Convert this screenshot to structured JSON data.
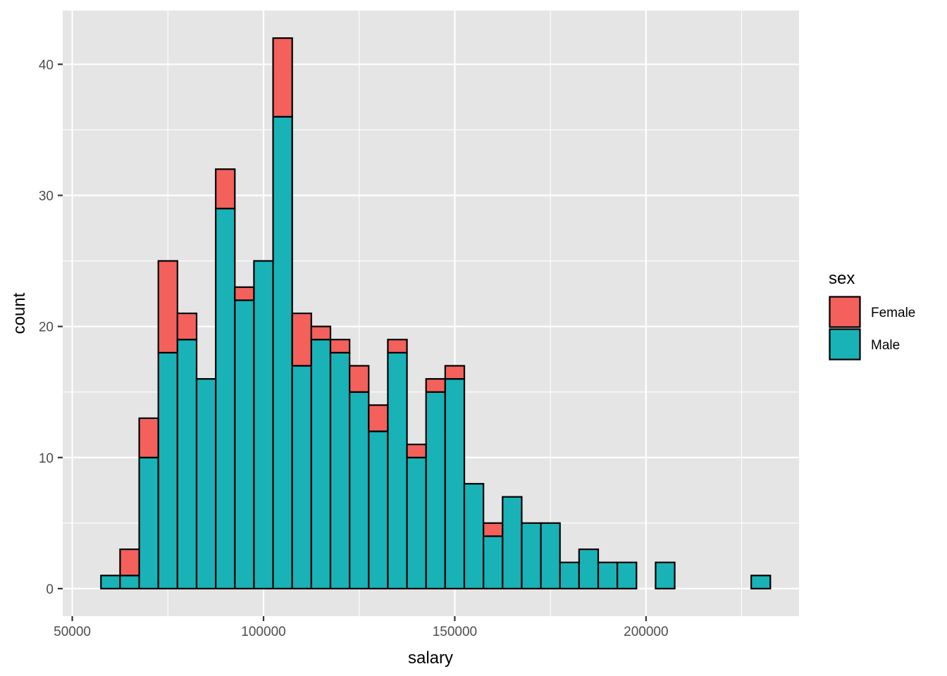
{
  "chart_data": {
    "type": "bar",
    "stacked": true,
    "xlabel": "salary",
    "ylabel": "count",
    "xlim": [
      47500,
      240000
    ],
    "ylim": [
      -2.1,
      44.1
    ],
    "bin_width": 5000,
    "bin_centers": [
      60000,
      65000,
      70000,
      75000,
      80000,
      85000,
      90000,
      95000,
      100000,
      105000,
      110000,
      115000,
      120000,
      125000,
      130000,
      135000,
      140000,
      145000,
      150000,
      155000,
      160000,
      165000,
      170000,
      175000,
      180000,
      185000,
      190000,
      195000,
      200000,
      205000,
      210000,
      215000,
      220000,
      225000,
      230000
    ],
    "series": [
      {
        "name": "Male",
        "color": "#19B2B7",
        "values": [
          1,
          1,
          10,
          18,
          19,
          16,
          29,
          22,
          25,
          36,
          17,
          19,
          18,
          15,
          12,
          18,
          10,
          15,
          16,
          8,
          4,
          7,
          5,
          5,
          2,
          3,
          2,
          2,
          0,
          2,
          0,
          0,
          0,
          0,
          1
        ]
      },
      {
        "name": "Female",
        "color": "#F4605B",
        "values": [
          0,
          2,
          3,
          7,
          2,
          0,
          3,
          1,
          0,
          6,
          4,
          1,
          1,
          2,
          2,
          1,
          1,
          1,
          1,
          0,
          1,
          0,
          0,
          0,
          0,
          0,
          0,
          0,
          0,
          0,
          0,
          0,
          0,
          0,
          0
        ]
      }
    ],
    "x_ticks": [
      50000,
      100000,
      150000,
      200000
    ],
    "x_tick_labels": [
      "50000",
      "100000",
      "150000",
      "200000"
    ],
    "y_ticks": [
      0,
      10,
      20,
      30,
      40
    ],
    "y_tick_labels": [
      "0",
      "10",
      "20",
      "30",
      "40"
    ],
    "grid": true,
    "panel_background": "#E5E5E5",
    "grid_color": "#FFFFFF",
    "bar_outline_color": "#000000",
    "legend": {
      "title": "sex",
      "placement": "right",
      "items": [
        {
          "label": "Female",
          "color": "#F4605B"
        },
        {
          "label": "Male",
          "color": "#19B2B7"
        }
      ]
    }
  }
}
